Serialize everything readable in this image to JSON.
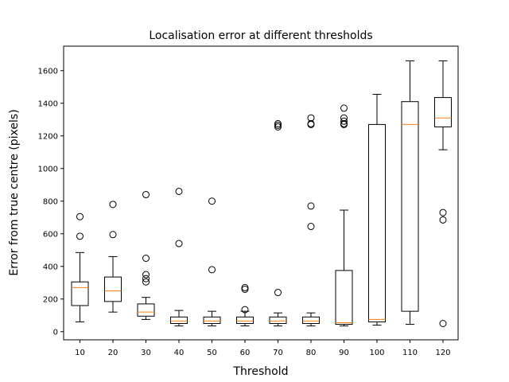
{
  "chart_data": {
    "type": "box",
    "title": "Localisation error at different thresholds",
    "xlabel": "Threshold",
    "ylabel": "Error from true centre (pixels)",
    "ylim": [
      -50,
      1750
    ],
    "yticks": [
      0,
      200,
      400,
      600,
      800,
      1000,
      1200,
      1400,
      1600
    ],
    "categories": [
      "10",
      "20",
      "30",
      "40",
      "50",
      "60",
      "70",
      "80",
      "90",
      "100",
      "110",
      "120"
    ],
    "median_color": "#ff7f0e",
    "box_color": "#000000",
    "boxes": [
      {
        "category": "10",
        "whisker_low": 60,
        "q1": 160,
        "median": 270,
        "q3": 305,
        "whisker_high": 485,
        "outliers": [
          705,
          585
        ]
      },
      {
        "category": "20",
        "whisker_low": 120,
        "q1": 185,
        "median": 250,
        "q3": 335,
        "whisker_high": 460,
        "outliers": [
          780,
          595
        ]
      },
      {
        "category": "30",
        "whisker_low": 75,
        "q1": 95,
        "median": 120,
        "q3": 170,
        "whisker_high": 210,
        "outliers": [
          840,
          450,
          350,
          325,
          305
        ]
      },
      {
        "category": "40",
        "whisker_low": 35,
        "q1": 50,
        "median": 65,
        "q3": 90,
        "whisker_high": 130,
        "outliers": [
          860,
          540
        ]
      },
      {
        "category": "50",
        "whisker_low": 35,
        "q1": 50,
        "median": 65,
        "q3": 90,
        "whisker_high": 125,
        "outliers": [
          800,
          380
        ]
      },
      {
        "category": "60",
        "whisker_low": 35,
        "q1": 50,
        "median": 65,
        "q3": 90,
        "whisker_high": 125,
        "outliers": [
          270,
          260,
          135
        ]
      },
      {
        "category": "70",
        "whisker_low": 35,
        "q1": 50,
        "median": 65,
        "q3": 90,
        "whisker_high": 115,
        "outliers": [
          1275,
          1265,
          1255,
          240
        ]
      },
      {
        "category": "80",
        "whisker_low": 35,
        "q1": 50,
        "median": 65,
        "q3": 90,
        "whisker_high": 115,
        "outliers": [
          1310,
          1275,
          1270,
          770,
          645
        ]
      },
      {
        "category": "90",
        "whisker_low": 35,
        "q1": 45,
        "median": 55,
        "q3": 375,
        "whisker_high": 745,
        "outliers": [
          1370,
          1310,
          1290,
          1275,
          1270
        ]
      },
      {
        "category": "100",
        "whisker_low": 40,
        "q1": 60,
        "median": 75,
        "q3": 1270,
        "whisker_high": 1455,
        "outliers": []
      },
      {
        "category": "110",
        "whisker_low": 45,
        "q1": 125,
        "median": 1270,
        "q3": 1410,
        "whisker_high": 1660,
        "outliers": []
      },
      {
        "category": "120",
        "whisker_low": 1115,
        "q1": 1255,
        "median": 1310,
        "q3": 1435,
        "whisker_high": 1660,
        "outliers": [
          730,
          685,
          50
        ]
      }
    ]
  }
}
